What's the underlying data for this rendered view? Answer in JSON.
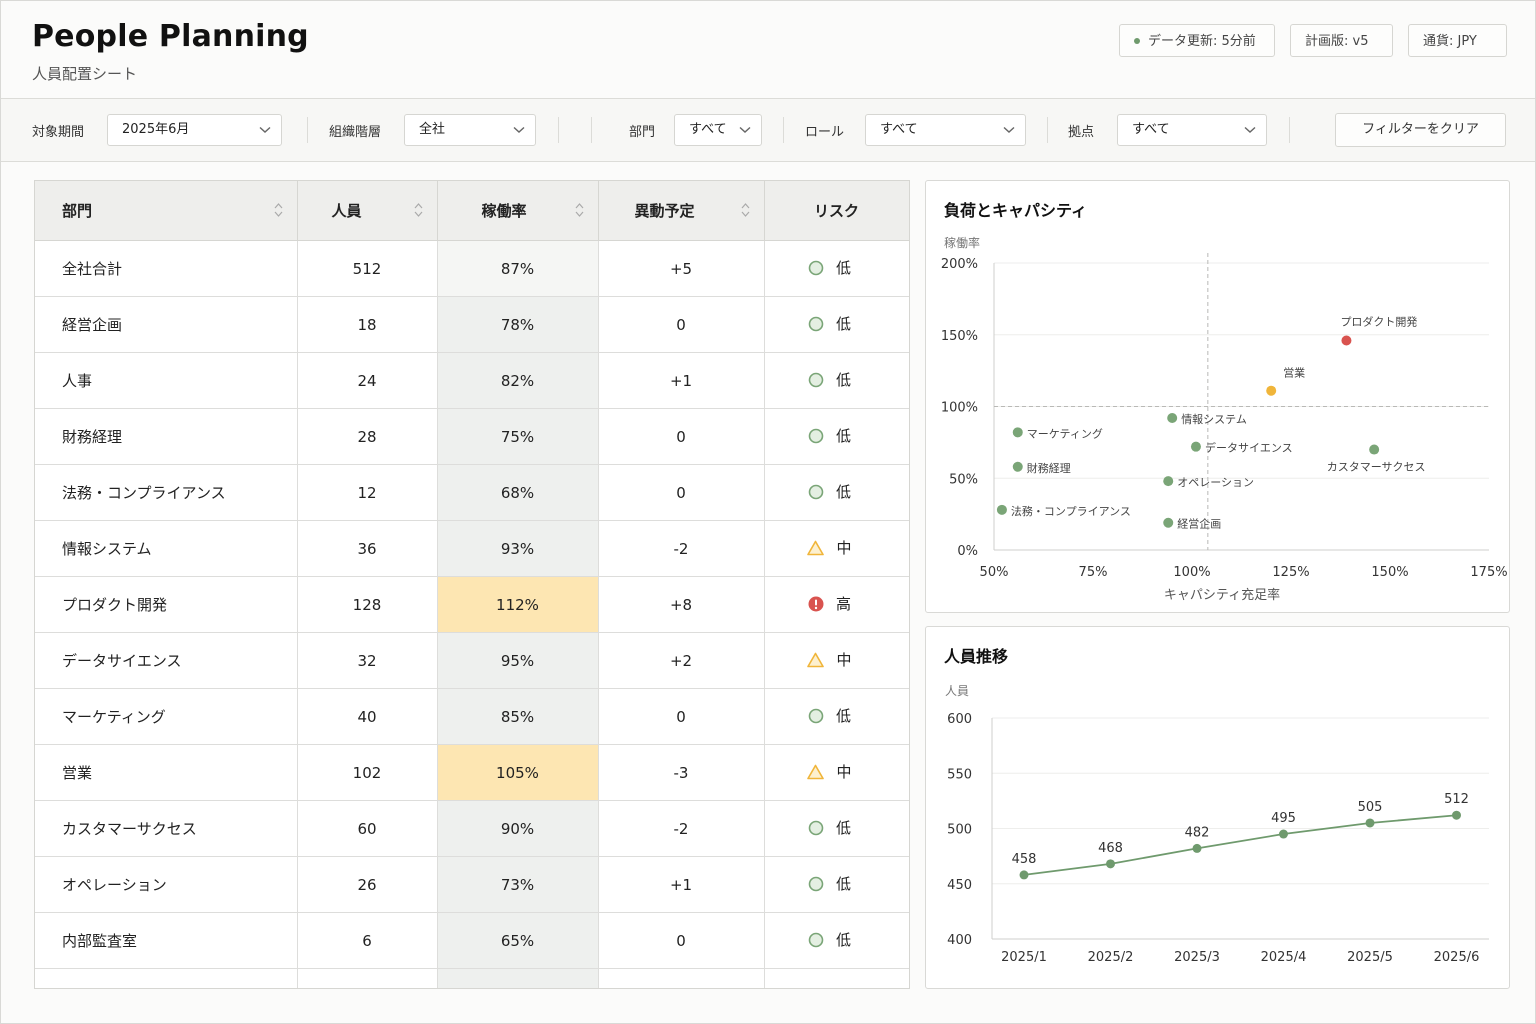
{
  "header": {
    "title": "People Planning",
    "subtitle": "人員配置シート",
    "data_update": "データ更新: 5分前",
    "plan_version": "計画版:  v5",
    "currency": "通貨:  JPY"
  },
  "filters": {
    "period": {
      "label": "対象期間",
      "value": "2025年6月"
    },
    "org_level": {
      "label": "組織階層",
      "value": "全社"
    },
    "department": {
      "label": "部門",
      "value": "すべて"
    },
    "role": {
      "label": "ロール",
      "value": "すべて"
    },
    "location": {
      "label": "拠点",
      "value": "すべて"
    },
    "clear_label": "フィルターをクリア"
  },
  "table": {
    "columns": [
      "部門",
      "人員",
      "稼働率",
      "異動予定",
      "リスク"
    ],
    "rows": [
      {
        "dept": "全社合計",
        "headcount": "512",
        "util": "87%",
        "moves": "+5",
        "risk": "低",
        "level": "low"
      },
      {
        "dept": "経営企画",
        "headcount": "18",
        "util": "78%",
        "moves": "0",
        "risk": "低",
        "level": "low"
      },
      {
        "dept": "人事",
        "headcount": "24",
        "util": "82%",
        "moves": "+1",
        "risk": "低",
        "level": "low"
      },
      {
        "dept": "財務経理",
        "headcount": "28",
        "util": "75%",
        "moves": "0",
        "risk": "低",
        "level": "low"
      },
      {
        "dept": "法務・コンプライアンス",
        "headcount": "12",
        "util": "68%",
        "moves": "0",
        "risk": "低",
        "level": "low"
      },
      {
        "dept": "情報システム",
        "headcount": "36",
        "util": "93%",
        "moves": "-2",
        "risk": "中",
        "level": "mid"
      },
      {
        "dept": "プロダクト開発",
        "headcount": "128",
        "util": "112%",
        "moves": "+8",
        "risk": "高",
        "level": "high"
      },
      {
        "dept": "データサイエンス",
        "headcount": "32",
        "util": "95%",
        "moves": "+2",
        "risk": "中",
        "level": "mid"
      },
      {
        "dept": "マーケティング",
        "headcount": "40",
        "util": "85%",
        "moves": "0",
        "risk": "低",
        "level": "low"
      },
      {
        "dept": "営業",
        "headcount": "102",
        "util": "105%",
        "moves": "-3",
        "risk": "中",
        "level": "mid"
      },
      {
        "dept": "カスタマーサクセス",
        "headcount": "60",
        "util": "90%",
        "moves": "-2",
        "risk": "低",
        "level": "low"
      },
      {
        "dept": "オペレーション",
        "headcount": "26",
        "util": "73%",
        "moves": "+1",
        "risk": "低",
        "level": "low"
      },
      {
        "dept": "内部監査室",
        "headcount": "6",
        "util": "65%",
        "moves": "0",
        "risk": "低",
        "level": "low"
      }
    ]
  },
  "colors": {
    "low": "#7aa577",
    "mid": "#f0b53a",
    "high": "#d9534f",
    "line": "#6f9a6d"
  },
  "chart_data": [
    {
      "type": "scatter",
      "title": "負荷とキャパシティ",
      "xlabel": "キャパシティ充足率",
      "ylabel": "稼働率",
      "xlim": [
        50,
        175
      ],
      "ylim": [
        0,
        200
      ],
      "xticks": [
        "50%",
        "75%",
        "100%",
        "125%",
        "150%",
        "175%"
      ],
      "yticks": [
        "0%",
        "50%",
        "100%",
        "150%",
        "200%"
      ],
      "reference": {
        "x": 104,
        "y": 100
      },
      "points": [
        {
          "label": "プロダクト開発",
          "x": 139,
          "y": 146,
          "level": "high"
        },
        {
          "label": "営業",
          "x": 120,
          "y": 111,
          "level": "mid"
        },
        {
          "label": "情報システム",
          "x": 95,
          "y": 92,
          "level": "low"
        },
        {
          "label": "マーケティング",
          "x": 56,
          "y": 82,
          "level": "low"
        },
        {
          "label": "データサイエンス",
          "x": 101,
          "y": 72,
          "level": "low"
        },
        {
          "label": "カスタマーサクセス",
          "x": 146,
          "y": 70,
          "level": "low"
        },
        {
          "label": "財務経理",
          "x": 56,
          "y": 58,
          "level": "low"
        },
        {
          "label": "オペレーション",
          "x": 94,
          "y": 48,
          "level": "low"
        },
        {
          "label": "法務・コンプライアンス",
          "x": 52,
          "y": 28,
          "level": "low"
        },
        {
          "label": "経営企画",
          "x": 94,
          "y": 19,
          "level": "low"
        }
      ]
    },
    {
      "type": "line",
      "title": "人員推移",
      "ylabel": "人員",
      "categories": [
        "2025/1",
        "2025/2",
        "2025/3",
        "2025/4",
        "2025/5",
        "2025/6"
      ],
      "values": [
        458,
        468,
        482,
        495,
        505,
        512
      ],
      "ylim": [
        400,
        600
      ],
      "yticks": [
        400,
        450,
        500,
        550,
        600
      ]
    }
  ]
}
